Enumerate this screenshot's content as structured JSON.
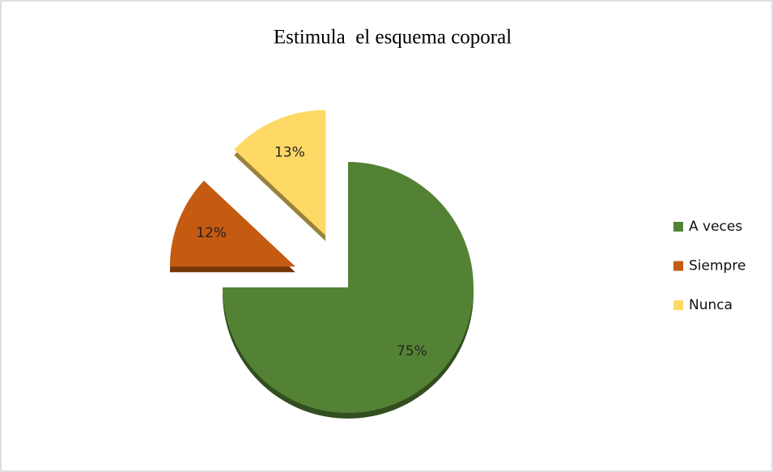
{
  "chart_data": {
    "type": "pie",
    "title": "Estimula  el esquema coporal",
    "categories": [
      "A veces",
      "Siempre",
      "Nunca"
    ],
    "values": [
      75,
      12,
      13
    ],
    "value_labels": [
      "75%",
      "12%",
      "13%"
    ],
    "colors": [
      "#548235",
      "#c55a11",
      "#ffd966"
    ],
    "legend": "right"
  }
}
